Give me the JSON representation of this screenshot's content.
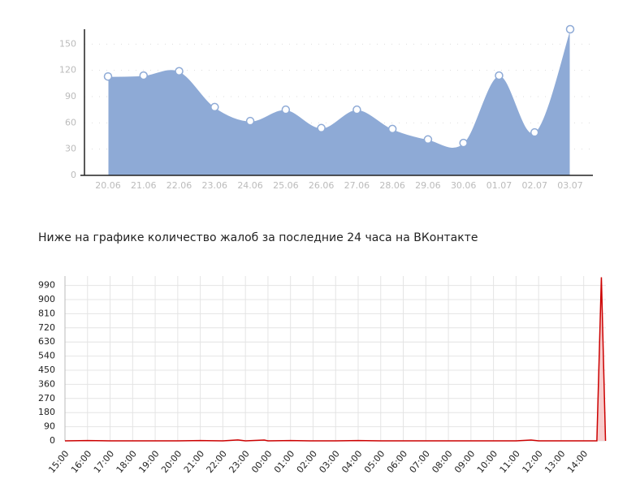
{
  "caption": "Ниже на графике количество жалоб за последние 24 часа на ВКонтакте",
  "chart_data": [
    {
      "type": "area",
      "categories": [
        "20.06",
        "21.06",
        "22.06",
        "23.06",
        "24.06",
        "25.06",
        "26.06",
        "27.06",
        "28.06",
        "29.06",
        "30.06",
        "01.07",
        "02.07",
        "03.07"
      ],
      "values": [
        113,
        114,
        119,
        78,
        62,
        75,
        54,
        75,
        53,
        41,
        37,
        114,
        49,
        167
      ],
      "color": "#8eaad6",
      "ylim": [
        0,
        167
      ],
      "yticks": [
        0,
        30,
        60,
        90,
        120,
        150
      ],
      "grid": true
    },
    {
      "type": "line",
      "x": [
        "15:00",
        "16:00",
        "17:00",
        "18:00",
        "19:00",
        "20:00",
        "21:00",
        "22:00",
        "22:40",
        "23:00",
        "23:50",
        "00:00",
        "01:00",
        "02:00",
        "03:00",
        "04:00",
        "05:00",
        "06:00",
        "07:00",
        "08:00",
        "09:00",
        "10:00",
        "11:00",
        "11:40",
        "12:00",
        "13:00",
        "14:00",
        "14:35",
        "14:47",
        "14:58"
      ],
      "values": [
        0,
        2,
        0,
        0,
        0,
        0,
        2,
        0,
        6,
        0,
        5,
        0,
        2,
        0,
        0,
        2,
        0,
        0,
        0,
        0,
        0,
        0,
        0,
        5,
        0,
        0,
        0,
        0,
        1042,
        0
      ],
      "color": "#cc0000",
      "xlim": [
        "15:00",
        "14:59"
      ],
      "xticks": [
        "15:00",
        "16:00",
        "17:00",
        "18:00",
        "19:00",
        "20:00",
        "21:00",
        "22:00",
        "23:00",
        "00:00",
        "01:00",
        "02:00",
        "03:00",
        "04:00",
        "05:00",
        "06:00",
        "07:00",
        "08:00",
        "09:00",
        "10:00",
        "11:00",
        "12:00",
        "13:00",
        "14:00"
      ],
      "ylim": [
        0,
        1050
      ],
      "yticks": [
        0,
        90,
        180,
        270,
        360,
        450,
        540,
        630,
        720,
        810,
        900,
        990
      ],
      "grid": true
    }
  ]
}
